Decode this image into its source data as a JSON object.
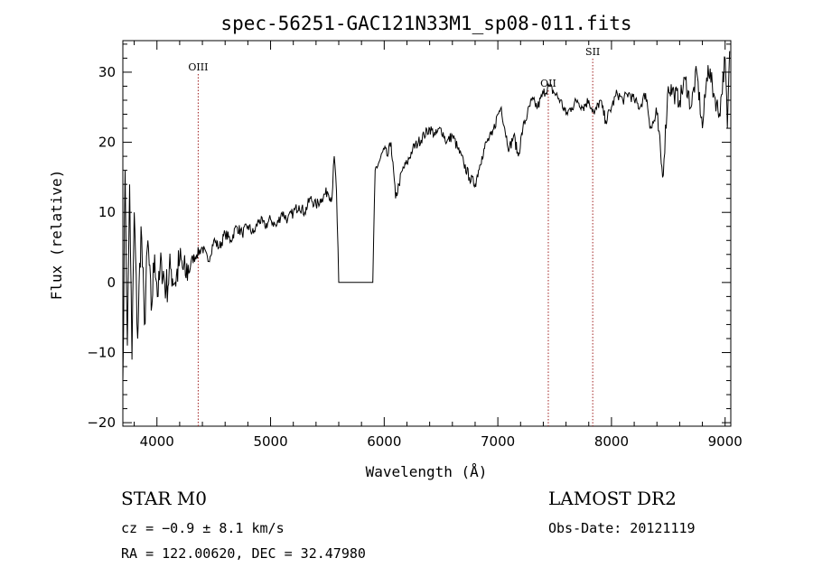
{
  "chart_data": {
    "type": "line",
    "title": "spec-56251-GAC121N33M1_sp08-011.fits",
    "xlabel": "Wavelength (Å)",
    "ylabel": "Flux (relative)",
    "xlim": [
      3700,
      9050
    ],
    "ylim": [
      -20.5,
      34.5
    ],
    "xticks": [
      4000,
      5000,
      6000,
      7000,
      8000,
      9000
    ],
    "xtick_labels": [
      "4000",
      "5000",
      "6000",
      "7000",
      "8000",
      "9000"
    ],
    "yticks": [
      -20,
      -10,
      0,
      10,
      20,
      30
    ],
    "ytick_labels": [
      "−20",
      "−10",
      "0",
      "10",
      "20",
      "30"
    ],
    "grid": false,
    "lines": [
      {
        "label": "OIII",
        "x": 4363
      },
      {
        "label": "OII",
        "x": 7444
      },
      {
        "label": "SII",
        "x": 7835
      }
    ],
    "series": [
      {
        "x": [
          3700,
          3720,
          3740,
          3760,
          3780,
          3800,
          3830,
          3860,
          3890,
          3920,
          3950,
          3980,
          4010,
          4040,
          4080,
          4120,
          4160,
          4200,
          4250,
          4300,
          4350,
          4400,
          4450,
          4500,
          4550,
          4600,
          4650,
          4700,
          4750,
          4800,
          4850,
          4900,
          4950,
          5000,
          5050,
          5100,
          5150,
          5200,
          5250,
          5300,
          5350,
          5400,
          5450,
          5500,
          5540,
          5560,
          5580,
          5600,
          5700,
          5800,
          5900,
          5920,
          5950,
          6000,
          6030,
          6060,
          6100,
          6130,
          6160,
          6200,
          6250,
          6300,
          6350,
          6400,
          6450,
          6500,
          6550,
          6600,
          6650,
          6700,
          6750,
          6800,
          6830,
          6860,
          6900,
          6950,
          7000,
          7030,
          7060,
          7100,
          7140,
          7180,
          7220,
          7260,
          7300,
          7350,
          7400,
          7450,
          7500,
          7550,
          7600,
          7650,
          7700,
          7750,
          7800,
          7850,
          7900,
          7950,
          8000,
          8050,
          8100,
          8150,
          8200,
          8250,
          8300,
          8350,
          8400,
          8450,
          8500,
          8550,
          8600,
          8650,
          8700,
          8750,
          8800,
          8850,
          8900,
          8950,
          9000,
          9020,
          9040
        ],
        "values": [
          -14,
          16,
          -9,
          14,
          -11,
          10,
          -8,
          8,
          -6,
          6,
          -4,
          4,
          -2,
          3,
          -1,
          2,
          0,
          3,
          1,
          3,
          4,
          5,
          3,
          6,
          5,
          7,
          6,
          8,
          7,
          8,
          7,
          9,
          8,
          9,
          8,
          10,
          9,
          10,
          11,
          10,
          12,
          11,
          12,
          13,
          12,
          18,
          13,
          0,
          0,
          0,
          0,
          16,
          17,
          19,
          18,
          20,
          12,
          14,
          16,
          17,
          19,
          20,
          21,
          22,
          21,
          22,
          20,
          21,
          19,
          17,
          15,
          14,
          16,
          18,
          20,
          21,
          24,
          25,
          22,
          19,
          21,
          18,
          22,
          24,
          26,
          25,
          27,
          28,
          27,
          26,
          24,
          25,
          26,
          25,
          26,
          24,
          26,
          23,
          25,
          27,
          26,
          27,
          26,
          25,
          27,
          22,
          24,
          15,
          28,
          27,
          26,
          29,
          25,
          30,
          22,
          31,
          27,
          24,
          32,
          22,
          33
        ]
      }
    ]
  },
  "info": {
    "class_line": "STAR    M0",
    "cz_line": "cz = −0.9 ± 8.1 km/s",
    "radec_line": "RA = 122.00620, DEC =  32.47980",
    "survey": "LAMOST DR2",
    "obs_date": "Obs-Date: 20121119"
  }
}
